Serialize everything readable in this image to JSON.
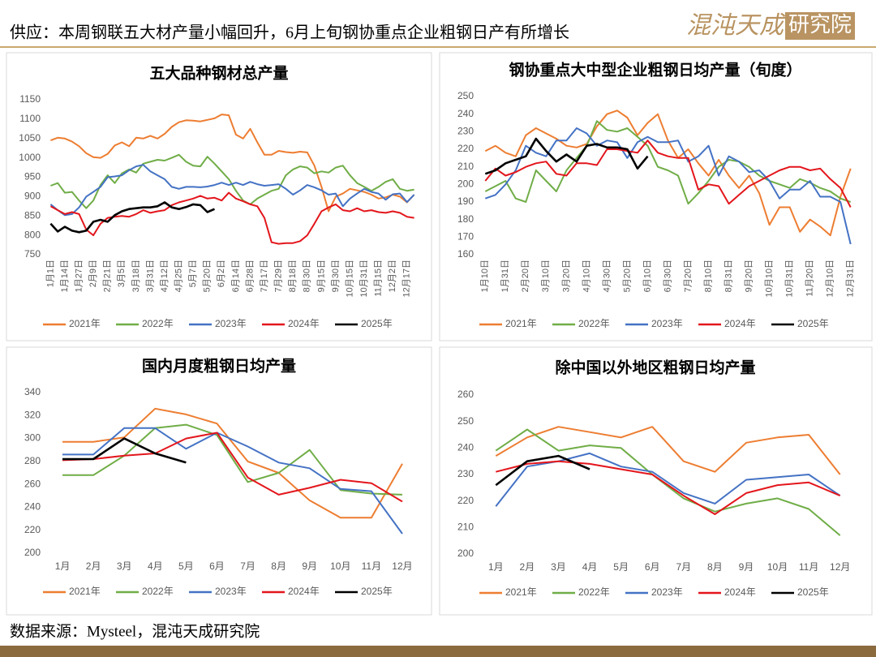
{
  "header": {
    "title": "供应：本周钢联五大材产量小幅回升，6月上旬钢协重点企业粗钢日产有所增长",
    "logo": "混沌天成",
    "logo_box": "研究院"
  },
  "footer": {
    "source": "数据来源：Mysteel，混沌天成研究院"
  },
  "chart_data": [
    {
      "type": "line",
      "title": "五大品种钢材总产量",
      "categories": [
        "1月1日",
        null,
        "1月14日",
        null,
        "1月27日",
        null,
        "2月9日",
        null,
        "2月21日",
        null,
        "3月5日",
        null,
        "3月18日",
        null,
        "3月31日",
        null,
        "4月12日",
        null,
        "4月25日",
        null,
        "5月7日",
        null,
        "5月20日",
        null,
        "6月2日",
        null,
        "6月14日",
        null,
        "6月28日",
        null,
        "7月17日",
        null,
        "7月29日",
        null,
        "8月18日",
        null,
        "8月30日",
        null,
        "9月15日",
        null,
        "9月30日",
        null,
        "10月15日",
        null,
        "10月31日",
        null,
        "11月15日",
        null,
        "12月2日",
        null,
        "12月17日",
        null
      ],
      "ylim": [
        750,
        1150
      ],
      "yticks": [
        750,
        800,
        850,
        900,
        950,
        1000,
        1050,
        1100,
        1150
      ],
      "grid": false,
      "series": [
        {
          "name": "2021年",
          "color": "#ed7d31",
          "values": [
            1045,
            1052,
            1050,
            1042,
            1030,
            1012,
            1002,
            1000,
            1010,
            1032,
            1040,
            1030,
            1052,
            1050,
            1057,
            1050,
            1062,
            1080,
            1092,
            1097,
            1096,
            1094,
            1098,
            1102,
            1112,
            1110,
            1060,
            1050,
            1075,
            1040,
            1008,
            1008,
            1018,
            1015,
            1013,
            1016,
            1014,
            980,
            925,
            862,
            900,
            908,
            920,
            916,
            912,
            905,
            895,
            898,
            905,
            900,
            885,
            905
          ]
        },
        {
          "name": "2022年",
          "color": "#70ad47",
          "values": [
            928,
            935,
            910,
            912,
            890,
            870,
            890,
            930,
            955,
            935,
            960,
            970,
            962,
            985,
            990,
            995,
            993,
            1000,
            1008,
            990,
            980,
            978,
            1003,
            985,
            965,
            945,
            915,
            890,
            880,
            895,
            905,
            915,
            920,
            955,
            970,
            978,
            975,
            960,
            965,
            962,
            975,
            980,
            955,
            935,
            925,
            915,
            925,
            938,
            945,
            920,
            915,
            918
          ]
        },
        {
          "name": "2023年",
          "color": "#4472c4",
          "values": [
            880,
            865,
            852,
            855,
            872,
            900,
            912,
            925,
            950,
            952,
            955,
            968,
            978,
            982,
            965,
            955,
            945,
            925,
            920,
            925,
            925,
            924,
            926,
            930,
            936,
            930,
            936,
            930,
            938,
            932,
            928,
            930,
            932,
            920,
            905,
            916,
            930,
            924,
            916,
            905,
            908,
            875,
            895,
            908,
            920,
            912,
            908,
            892,
            906,
            908,
            886,
            905
          ]
        },
        {
          "name": "2024年",
          "color": "#e3161c",
          "values": [
            875,
            865,
            855,
            860,
            855,
            815,
            800,
            830,
            845,
            848,
            850,
            848,
            855,
            865,
            858,
            862,
            865,
            878,
            885,
            890,
            895,
            902,
            895,
            897,
            890,
            910,
            895,
            888,
            880,
            875,
            845,
            782,
            778,
            780,
            780,
            785,
            800,
            830,
            862,
            872,
            880,
            865,
            862,
            870,
            862,
            865,
            860,
            858,
            862,
            858,
            848,
            845
          ]
        },
        {
          "name": "2025年",
          "color": "#000000",
          "values": [
            830,
            810,
            822,
            812,
            808,
            812,
            835,
            840,
            835,
            852,
            862,
            868,
            870,
            872,
            872,
            875,
            885,
            872,
            868,
            873,
            880,
            878,
            860,
            868,
            null,
            null,
            null,
            null,
            null,
            null,
            null,
            null,
            null,
            null,
            null,
            null,
            null,
            null,
            null,
            null,
            null,
            null,
            null,
            null,
            null,
            null,
            null,
            null,
            null,
            null,
            null,
            null
          ]
        }
      ]
    },
    {
      "type": "line",
      "title": "钢协重点大中型企业粗钢日均产量（旬度）",
      "categories": [
        "1月10日",
        null,
        "1月31日",
        null,
        "2月20日",
        null,
        "3月10日",
        null,
        "3月20日",
        null,
        "4月10日",
        null,
        "4月30日",
        null,
        "5月20日",
        null,
        "6月10日",
        null,
        "6月30日",
        null,
        "7月20日",
        null,
        "8月10日",
        null,
        "8月31日",
        null,
        "9月20日",
        null,
        "10月10日",
        null,
        "10月31日",
        null,
        "11月20日",
        null,
        "12月10日",
        null,
        "12月31日"
      ],
      "ylim": [
        160,
        250
      ],
      "yticks": [
        160,
        170,
        180,
        190,
        200,
        210,
        220,
        230,
        240,
        250
      ],
      "grid": false,
      "series": [
        {
          "name": "2021年",
          "color": "#ed7d31",
          "values": [
            219,
            222,
            218,
            216,
            228,
            232,
            229,
            226,
            222,
            221,
            223,
            233,
            240,
            242,
            238,
            228,
            235,
            240,
            225,
            215,
            220,
            212,
            205,
            214,
            205,
            198,
            205,
            195,
            177,
            187,
            187,
            173,
            180,
            176,
            171,
            193,
            209
          ]
        },
        {
          "name": "2022年",
          "color": "#70ad47",
          "values": [
            196,
            199,
            202,
            192,
            190,
            208,
            202,
            196,
            208,
            215,
            222,
            236,
            231,
            230,
            232,
            227,
            222,
            210,
            208,
            205,
            189,
            195,
            202,
            210,
            214,
            213,
            210,
            205,
            202,
            200,
            198,
            203,
            201,
            198,
            196,
            192,
            190
          ]
        },
        {
          "name": "2023年",
          "color": "#4472c4",
          "values": [
            192,
            194,
            200,
            208,
            222,
            218,
            216,
            225,
            225,
            232,
            229,
            222,
            225,
            224,
            215,
            224,
            227,
            224,
            224,
            225,
            213,
            216,
            222,
            205,
            216,
            213,
            207,
            208,
            202,
            192,
            197,
            197,
            202,
            193,
            193,
            190,
            166
          ]
        },
        {
          "name": "2024年",
          "color": "#e3161c",
          "values": [
            202,
            209,
            205,
            207,
            210,
            212,
            213,
            206,
            205,
            212,
            212,
            211,
            220,
            220,
            219,
            218,
            225,
            218,
            216,
            215,
            215,
            197,
            200,
            199,
            189,
            194,
            199,
            202,
            205,
            208,
            210,
            210,
            208,
            209,
            203,
            198,
            187
          ]
        },
        {
          "name": "2025年",
          "color": "#000000",
          "values": [
            206,
            208,
            212,
            214,
            216,
            226,
            219,
            213,
            217,
            213,
            222,
            223,
            221,
            221,
            220,
            209,
            216,
            null,
            null,
            null,
            null,
            null,
            null,
            null,
            null,
            null,
            null,
            null,
            null,
            null,
            null,
            null,
            null,
            null,
            null,
            null,
            null
          ]
        }
      ]
    },
    {
      "type": "line",
      "title": "国内月度粗钢日均产量",
      "categories": [
        "1月",
        "2月",
        "3月",
        "4月",
        "5月",
        "6月",
        "7月",
        "8月",
        "9月",
        "10月",
        "11月",
        "12月"
      ],
      "ylim": [
        200,
        340
      ],
      "yticks": [
        200,
        220,
        240,
        260,
        280,
        300,
        320,
        340
      ],
      "grid": false,
      "series": [
        {
          "name": "2021年",
          "color": "#ed7d31",
          "values": [
            297,
            297,
            301,
            326,
            321,
            313,
            280,
            270,
            246,
            231,
            231,
            278
          ]
        },
        {
          "name": "2022年",
          "color": "#70ad47",
          "values": [
            268,
            268,
            285,
            309,
            312,
            303,
            262,
            270,
            290,
            255,
            252,
            251
          ]
        },
        {
          "name": "2023年",
          "color": "#4472c4",
          "values": [
            286,
            286,
            309,
            309,
            291,
            305,
            293,
            279,
            274,
            256,
            254,
            217
          ]
        },
        {
          "name": "2024年",
          "color": "#e3161c",
          "values": [
            281,
            282,
            285,
            287,
            300,
            305,
            266,
            251,
            257,
            264,
            261,
            245
          ]
        },
        {
          "name": "2025年",
          "color": "#000000",
          "values": [
            282,
            282,
            300,
            287,
            279,
            null,
            null,
            null,
            null,
            null,
            null,
            null
          ]
        }
      ]
    },
    {
      "type": "line",
      "title": "除中国以外地区粗钢日均产量",
      "categories": [
        "1月",
        "2月",
        "3月",
        "4月",
        "5月",
        "6月",
        "7月",
        "8月",
        "9月",
        "10月",
        "11月",
        "12月"
      ],
      "ylim": [
        200,
        260
      ],
      "yticks": [
        200,
        210,
        220,
        230,
        240,
        250,
        260
      ],
      "grid": false,
      "series": [
        {
          "name": "2021年",
          "color": "#ed7d31",
          "values": [
            237,
            244,
            248,
            246,
            244,
            248,
            235,
            231,
            242,
            244,
            245,
            230
          ]
        },
        {
          "name": "2022年",
          "color": "#70ad47",
          "values": [
            239,
            247,
            239,
            241,
            240,
            230,
            221,
            216,
            219,
            221,
            217,
            207
          ]
        },
        {
          "name": "2023年",
          "color": "#4472c4",
          "values": [
            218,
            233,
            235,
            238,
            233,
            231,
            223,
            219,
            228,
            229,
            230,
            222
          ]
        },
        {
          "name": "2024年",
          "color": "#e3161c",
          "values": [
            231,
            234,
            235,
            234,
            232,
            230,
            222,
            215,
            223,
            226,
            227,
            222
          ]
        },
        {
          "name": "2025年",
          "color": "#000000",
          "values": [
            226,
            235,
            237,
            232,
            null,
            null,
            null,
            null,
            null,
            null,
            null,
            null
          ]
        }
      ]
    }
  ]
}
